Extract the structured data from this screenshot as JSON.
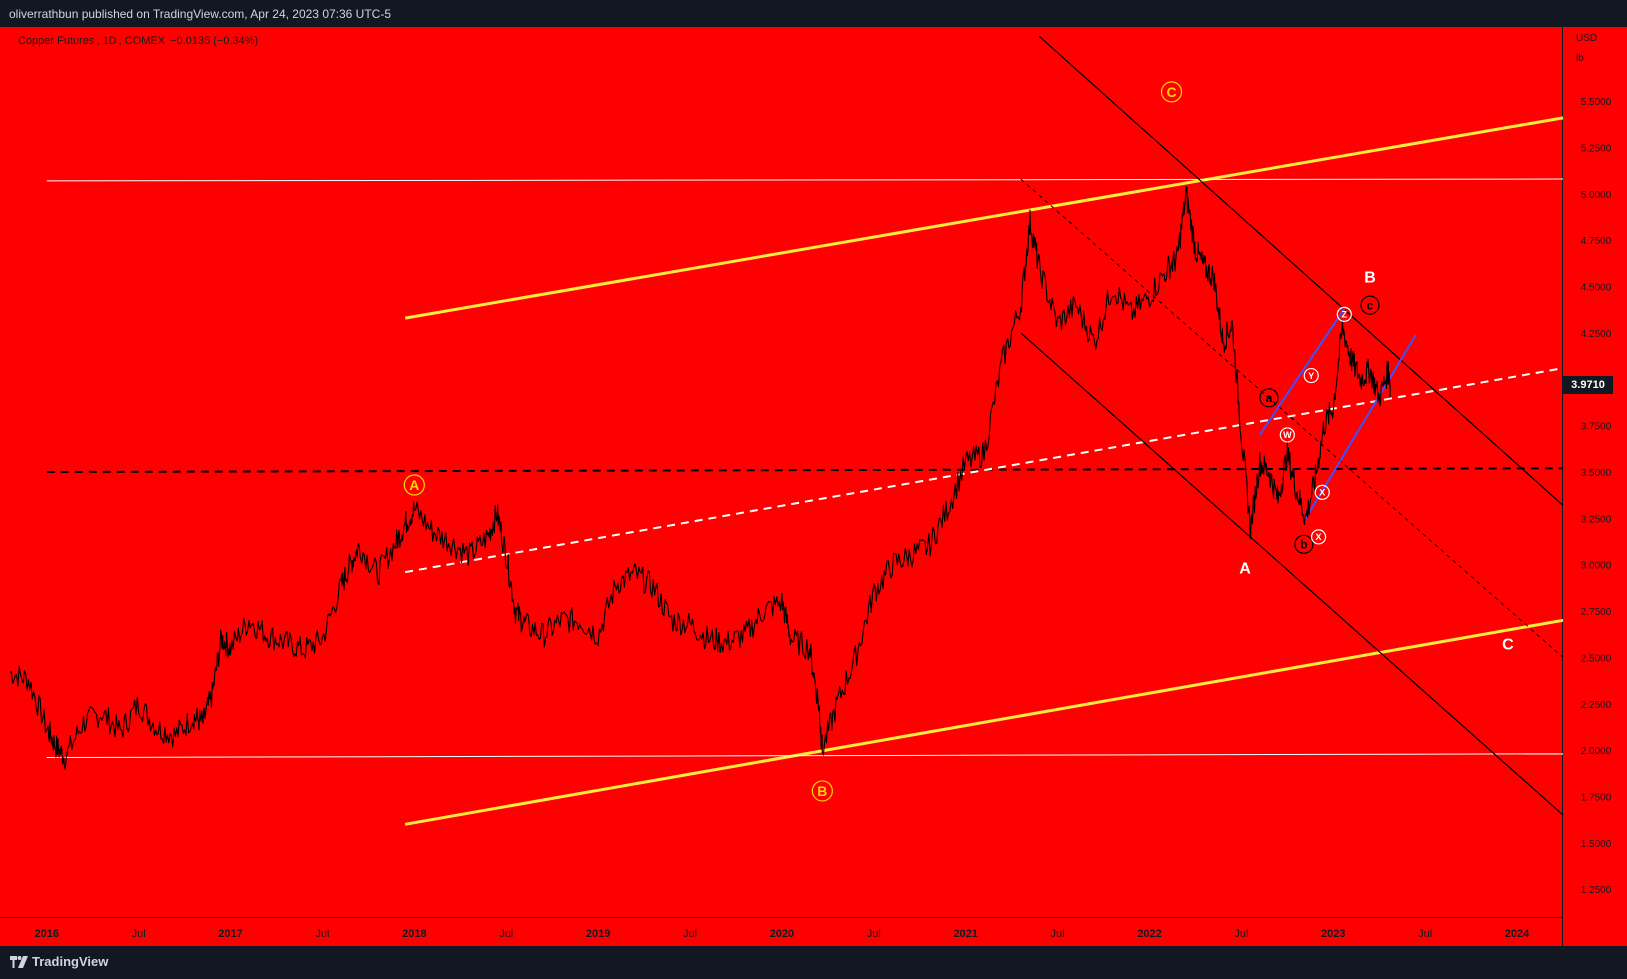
{
  "publisher_line": "oliverrathbun published on TradingView.com, Apr 24, 2023 07:36 UTC-5",
  "symbol": {
    "name": "Copper Futures",
    "interval": "1D",
    "exchange": "COMEX",
    "change": "−0.0135 (−0.34%)"
  },
  "axis": {
    "currency": "USD",
    "unit": "lb"
  },
  "price_tag": "3.9710",
  "footer_brand": "TradingView",
  "colors": {
    "background": "#ff0000",
    "frame": "#131722",
    "price_line": "#000000",
    "yellow_channel": "#ffeb3b",
    "blue_channel": "#3f51ff",
    "white_level": "#ffffff",
    "label_orange": "#ffd600"
  },
  "chart_data": {
    "type": "line",
    "title": "Copper Futures, 1D, COMEX",
    "ylim": [
      1.1,
      5.9
    ],
    "xlim": [
      2015.8,
      2024.25
    ],
    "y_ticks": [
      "5.5000",
      "5.2500",
      "5.0000",
      "4.7500",
      "4.5000",
      "4.2500",
      "3.7500",
      "3.5000",
      "3.2500",
      "3.0000",
      "2.7500",
      "2.5000",
      "2.2500",
      "2.0000",
      "1.7500",
      "1.5000",
      "1.2500"
    ],
    "x_ticks": [
      {
        "label": "2016",
        "x": 2016.0
      },
      {
        "label": "Jul",
        "x": 2016.5
      },
      {
        "label": "2017",
        "x": 2017.0
      },
      {
        "label": "Jul",
        "x": 2017.5
      },
      {
        "label": "2018",
        "x": 2018.0
      },
      {
        "label": "Jul",
        "x": 2018.5
      },
      {
        "label": "2019",
        "x": 2019.0
      },
      {
        "label": "Jul",
        "x": 2019.5
      },
      {
        "label": "2020",
        "x": 2020.0
      },
      {
        "label": "Jul",
        "x": 2020.5
      },
      {
        "label": "2021",
        "x": 2021.0
      },
      {
        "label": "Jul",
        "x": 2021.5
      },
      {
        "label": "2022",
        "x": 2022.0
      },
      {
        "label": "Jul",
        "x": 2022.5
      },
      {
        "label": "2023",
        "x": 2023.0
      },
      {
        "label": "Jul",
        "x": 2023.5
      },
      {
        "label": "2024",
        "x": 2024.0
      }
    ],
    "series": [
      {
        "values": [
          [
            2015.8,
            2.42
          ],
          [
            2015.9,
            2.38
          ],
          [
            2016.0,
            2.12
          ],
          [
            2016.05,
            2.02
          ],
          [
            2016.1,
            1.96
          ],
          [
            2016.2,
            2.15
          ],
          [
            2016.3,
            2.2
          ],
          [
            2016.4,
            2.1
          ],
          [
            2016.5,
            2.25
          ],
          [
            2016.6,
            2.12
          ],
          [
            2016.7,
            2.08
          ],
          [
            2016.8,
            2.18
          ],
          [
            2016.85,
            2.15
          ],
          [
            2016.9,
            2.3
          ],
          [
            2016.95,
            2.6
          ],
          [
            2017.0,
            2.55
          ],
          [
            2017.1,
            2.7
          ],
          [
            2017.2,
            2.62
          ],
          [
            2017.3,
            2.58
          ],
          [
            2017.4,
            2.54
          ],
          [
            2017.5,
            2.6
          ],
          [
            2017.6,
            2.88
          ],
          [
            2017.65,
            3.0
          ],
          [
            2017.7,
            3.1
          ],
          [
            2017.8,
            2.95
          ],
          [
            2017.9,
            3.12
          ],
          [
            2017.95,
            3.22
          ],
          [
            2018.0,
            3.3
          ],
          [
            2018.1,
            3.18
          ],
          [
            2018.2,
            3.12
          ],
          [
            2018.3,
            3.05
          ],
          [
            2018.4,
            3.15
          ],
          [
            2018.45,
            3.28
          ],
          [
            2018.5,
            3.05
          ],
          [
            2018.55,
            2.75
          ],
          [
            2018.6,
            2.68
          ],
          [
            2018.7,
            2.62
          ],
          [
            2018.8,
            2.7
          ],
          [
            2018.9,
            2.7
          ],
          [
            2019.0,
            2.62
          ],
          [
            2019.1,
            2.9
          ],
          [
            2019.2,
            2.95
          ],
          [
            2019.3,
            2.88
          ],
          [
            2019.4,
            2.7
          ],
          [
            2019.5,
            2.68
          ],
          [
            2019.6,
            2.6
          ],
          [
            2019.7,
            2.58
          ],
          [
            2019.8,
            2.62
          ],
          [
            2019.9,
            2.75
          ],
          [
            2020.0,
            2.8
          ],
          [
            2020.05,
            2.6
          ],
          [
            2020.15,
            2.55
          ],
          [
            2020.2,
            2.25
          ],
          [
            2020.22,
            2.0
          ],
          [
            2020.3,
            2.25
          ],
          [
            2020.4,
            2.5
          ],
          [
            2020.5,
            2.85
          ],
          [
            2020.6,
            3.0
          ],
          [
            2020.7,
            3.05
          ],
          [
            2020.8,
            3.1
          ],
          [
            2020.9,
            3.3
          ],
          [
            2021.0,
            3.55
          ],
          [
            2021.1,
            3.6
          ],
          [
            2021.2,
            4.1
          ],
          [
            2021.3,
            4.4
          ],
          [
            2021.35,
            4.85
          ],
          [
            2021.4,
            4.6
          ],
          [
            2021.5,
            4.3
          ],
          [
            2021.6,
            4.4
          ],
          [
            2021.7,
            4.2
          ],
          [
            2021.8,
            4.5
          ],
          [
            2021.9,
            4.35
          ],
          [
            2022.0,
            4.45
          ],
          [
            2022.1,
            4.6
          ],
          [
            2022.15,
            4.65
          ],
          [
            2022.2,
            5.0
          ],
          [
            2022.25,
            4.7
          ],
          [
            2022.3,
            4.6
          ],
          [
            2022.35,
            4.55
          ],
          [
            2022.4,
            4.2
          ],
          [
            2022.45,
            4.3
          ],
          [
            2022.5,
            3.7
          ],
          [
            2022.55,
            3.2
          ],
          [
            2022.6,
            3.55
          ],
          [
            2022.65,
            3.5
          ],
          [
            2022.7,
            3.35
          ],
          [
            2022.75,
            3.6
          ],
          [
            2022.8,
            3.4
          ],
          [
            2022.85,
            3.25
          ],
          [
            2022.9,
            3.45
          ],
          [
            2022.95,
            3.75
          ],
          [
            2023.0,
            3.85
          ],
          [
            2023.05,
            4.28
          ],
          [
            2023.1,
            4.1
          ],
          [
            2023.15,
            4.0
          ],
          [
            2023.2,
            4.05
          ],
          [
            2023.25,
            3.9
          ],
          [
            2023.3,
            4.05
          ],
          [
            2023.31,
            3.97
          ]
        ]
      }
    ],
    "last_price": 3.971,
    "grid": false,
    "annotations": [
      {
        "text": "C",
        "x": 2022.12,
        "y": 5.55,
        "style": "circle-orange"
      },
      {
        "text": "A",
        "x": 2018.0,
        "y": 3.43,
        "style": "circle-orange"
      },
      {
        "text": "B",
        "x": 2020.22,
        "y": 1.78,
        "style": "circle-orange"
      },
      {
        "text": "B",
        "x": 2023.2,
        "y": 4.55,
        "style": "plain-white"
      },
      {
        "text": "A",
        "x": 2022.52,
        "y": 2.98,
        "style": "plain-white"
      },
      {
        "text": "C",
        "x": 2023.95,
        "y": 2.57,
        "style": "plain-white"
      },
      {
        "text": "a",
        "x": 2022.65,
        "y": 3.9,
        "style": "circle-black"
      },
      {
        "text": "b",
        "x": 2022.84,
        "y": 3.11,
        "style": "circle-black"
      },
      {
        "text": "c",
        "x": 2023.2,
        "y": 4.4,
        "style": "circle-black"
      },
      {
        "text": "W",
        "x": 2022.75,
        "y": 3.7,
        "style": "circle-white"
      },
      {
        "text": "X",
        "x": 2022.92,
        "y": 3.15,
        "style": "circle-white"
      },
      {
        "text": "X",
        "x": 2022.94,
        "y": 3.39,
        "style": "circle-white"
      },
      {
        "text": "Y",
        "x": 2022.88,
        "y": 4.02,
        "style": "circle-white"
      },
      {
        "text": "Z",
        "x": 2023.06,
        "y": 4.35,
        "style": "circle-white"
      }
    ],
    "drawn_lines": [
      {
        "style": "yellow",
        "from": [
          2017.95,
          4.33
        ],
        "to": [
          2024.25,
          5.41
        ]
      },
      {
        "style": "yellow",
        "from": [
          2017.95,
          1.6
        ],
        "to": [
          2024.25,
          2.7
        ]
      },
      {
        "style": "white-thin",
        "from": [
          2016.0,
          5.07
        ],
        "to": [
          2024.25,
          5.08
        ]
      },
      {
        "style": "white-thin",
        "from": [
          2016.0,
          1.96
        ],
        "to": [
          2024.25,
          1.98
        ]
      },
      {
        "style": "black-dashed",
        "from": [
          2016.0,
          3.5
        ],
        "to": [
          2024.25,
          3.52
        ]
      },
      {
        "style": "white-dashed",
        "from": [
          2017.95,
          2.96
        ],
        "to": [
          2024.25,
          4.06
        ]
      },
      {
        "style": "black",
        "from": [
          2021.4,
          5.85
        ],
        "to": [
          2024.25,
          3.32
        ]
      },
      {
        "style": "black",
        "from": [
          2021.3,
          4.25
        ],
        "to": [
          2024.25,
          1.65
        ]
      },
      {
        "style": "black-thin-dashed",
        "from": [
          2021.3,
          5.08
        ],
        "to": [
          2024.25,
          2.5
        ]
      },
      {
        "style": "blue",
        "from": [
          2022.6,
          3.7
        ],
        "to": [
          2023.06,
          4.38
        ]
      },
      {
        "style": "blue",
        "from": [
          2022.85,
          3.25
        ],
        "to": [
          2023.45,
          4.24
        ]
      }
    ]
  }
}
